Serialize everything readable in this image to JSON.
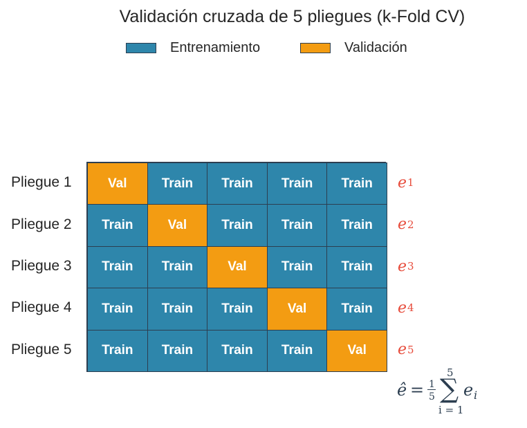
{
  "title": "Validación cruzada de 5 pliegues (k-Fold CV)",
  "legend": {
    "train_label": "Entrenamiento",
    "val_label": "Validación"
  },
  "colors": {
    "train": "#2e86ab",
    "val": "#f39c12",
    "border": "#2c3e50",
    "error": "#e74c3c"
  },
  "cell_labels": {
    "train": "Train",
    "val": "Val"
  },
  "folds": [
    {
      "label": "Pliegue 1",
      "error_var": "e",
      "error_sub": "1",
      "cells": [
        "val",
        "train",
        "train",
        "train",
        "train"
      ]
    },
    {
      "label": "Pliegue 2",
      "error_var": "e",
      "error_sub": "2",
      "cells": [
        "train",
        "val",
        "train",
        "train",
        "train"
      ]
    },
    {
      "label": "Pliegue 3",
      "error_var": "e",
      "error_sub": "3",
      "cells": [
        "train",
        "train",
        "val",
        "train",
        "train"
      ]
    },
    {
      "label": "Pliegue 4",
      "error_var": "e",
      "error_sub": "4",
      "cells": [
        "train",
        "train",
        "train",
        "val",
        "train"
      ]
    },
    {
      "label": "Pliegue 5",
      "error_var": "e",
      "error_sub": "5",
      "cells": [
        "train",
        "train",
        "train",
        "train",
        "val"
      ]
    }
  ],
  "formula": {
    "lhs": "ê",
    "equals": "=",
    "frac_num": "1",
    "frac_den": "5",
    "sum_symbol": "∑",
    "upper": "5",
    "lower": "i = 1",
    "term": "e",
    "term_sub": "i"
  }
}
